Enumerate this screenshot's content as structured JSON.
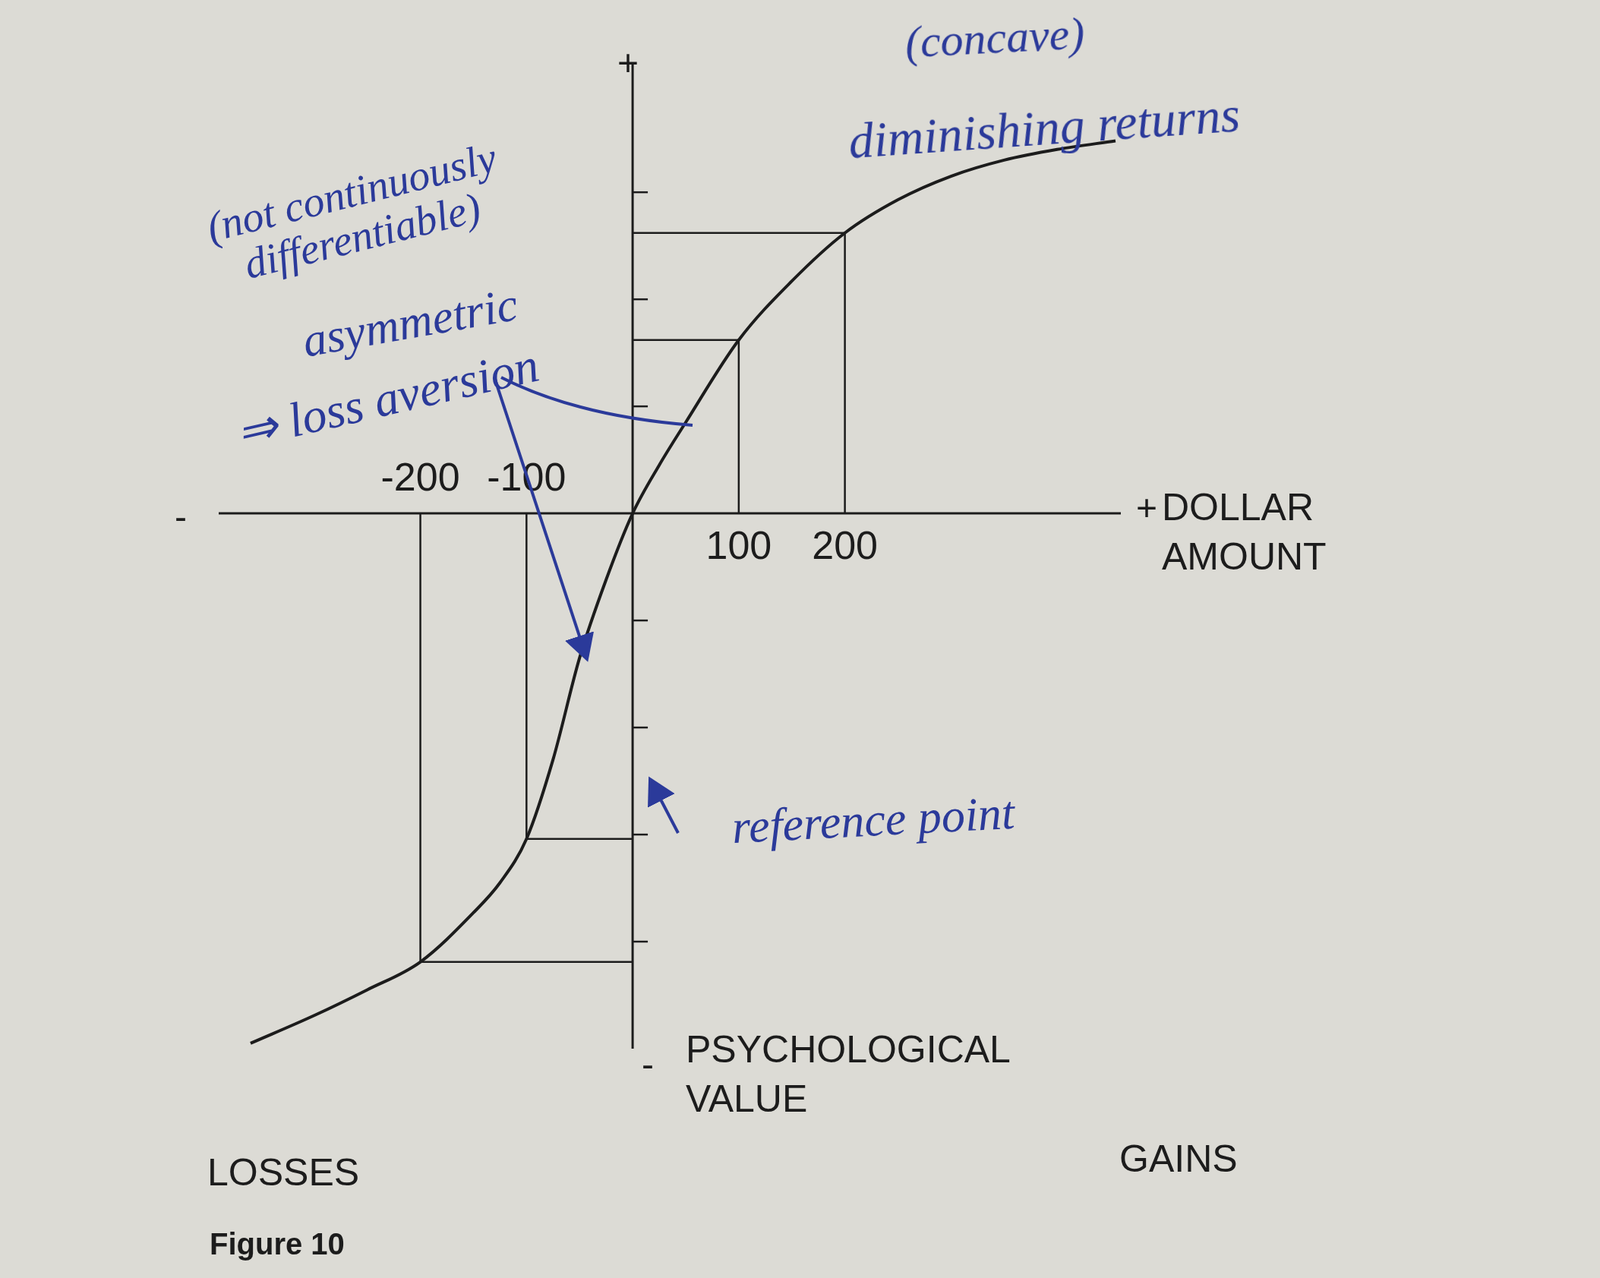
{
  "chart_data": {
    "type": "line",
    "title": "Figure 10",
    "x_label": "DOLLAR AMOUNT",
    "y_label": "PSYCHOLOGICAL VALUE",
    "x": [
      -360,
      -300,
      -250,
      -200,
      -150,
      -125,
      -100,
      -75,
      -50,
      -25,
      0,
      25,
      50,
      100,
      150,
      200,
      250,
      300,
      350,
      400,
      455
    ],
    "values": [
      -4.95,
      -4.69,
      -4.45,
      -4.19,
      -3.73,
      -3.45,
      -3.04,
      -2.3,
      -1.35,
      -0.62,
      0,
      0.45,
      0.85,
      1.62,
      2.17,
      2.62,
      2.93,
      3.15,
      3.3,
      3.4,
      3.48
    ],
    "color": "#1c1c1c",
    "xlim": [
      -390,
      460
    ],
    "ylim": [
      -5,
      4.2
    ],
    "xticks": [
      -200,
      -100,
      100,
      200
    ],
    "yticks": [
      -4,
      -3,
      -2,
      -1,
      1,
      2,
      3
    ],
    "tick_labels": "x",
    "grid": false,
    "axis_end_labels": {
      "x": [
        "-",
        "+"
      ],
      "y": [
        "-",
        "+"
      ]
    },
    "region_labels": [
      "LOSSES",
      "GAINS"
    ],
    "annotations": [
      "(concave)",
      "diminishing returns",
      "(not continuously differentiable)",
      "asymmetric",
      "⇒ loss aversion",
      "reference point"
    ]
  }
}
